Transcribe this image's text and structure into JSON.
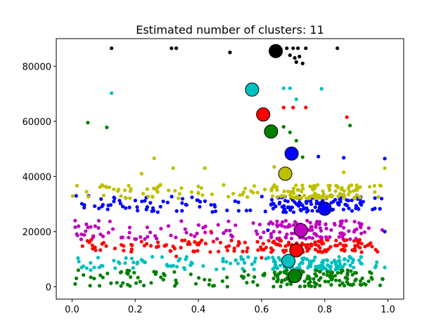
{
  "chart_data": {
    "type": "scatter",
    "title": "Estimated number of clusters: 11",
    "xlabel": "",
    "ylabel": "",
    "xlim": [
      -0.05,
      1.05
    ],
    "ylim": [
      -4500,
      90000
    ],
    "x_ticks": [
      0.0,
      0.2,
      0.4,
      0.6,
      0.8,
      1.0
    ],
    "x_tick_labels": [
      "0.0",
      "0.2",
      "0.4",
      "0.6",
      "0.8",
      "1.0"
    ],
    "y_ticks": [
      0,
      20000,
      40000,
      60000,
      80000
    ],
    "y_tick_labels": [
      "0",
      "20000",
      "40000",
      "60000",
      "80000"
    ],
    "grid": false,
    "legend": "none",
    "clusters": [
      {
        "color": "#000000",
        "centroid": [
          0.645,
          85500
        ],
        "members": [
          [
            0.125,
            86500
          ],
          [
            0.315,
            86500
          ],
          [
            0.33,
            86500
          ],
          [
            0.5,
            85000
          ],
          [
            0.68,
            86500
          ],
          [
            0.7,
            86500
          ],
          [
            0.715,
            86500
          ],
          [
            0.74,
            86500
          ],
          [
            0.84,
            86500
          ],
          [
            0.69,
            84000
          ],
          [
            0.705,
            83000
          ],
          [
            0.72,
            83500
          ],
          [
            0.71,
            81500
          ],
          [
            0.73,
            81000
          ]
        ]
      },
      {
        "color": "#00bfbf",
        "centroid": [
          0.57,
          71500
        ],
        "members": [
          [
            0.125,
            70200
          ],
          [
            0.67,
            72000
          ],
          [
            0.69,
            72000
          ],
          [
            0.71,
            68000
          ],
          [
            0.79,
            71800
          ]
        ]
      },
      {
        "color": "#ff0000",
        "centroid": [
          0.605,
          62500
        ],
        "members": [
          [
            0.67,
            65000
          ],
          [
            0.7,
            65000
          ],
          [
            0.74,
            65000
          ],
          [
            0.87,
            61500
          ]
        ]
      },
      {
        "color": "#008000",
        "centroid": [
          0.63,
          56300
        ],
        "members": [
          [
            0.05,
            59500
          ],
          [
            0.11,
            57800
          ],
          [
            0.88,
            58500
          ],
          [
            0.67,
            58000
          ],
          [
            0.69,
            56000
          ],
          [
            0.71,
            53000
          ],
          [
            0.7,
            49000
          ],
          [
            0.73,
            47000
          ]
        ]
      },
      {
        "color": "#0000ff",
        "centroid": [
          0.695,
          48300
        ],
        "members": [
          [
            0.78,
            47200
          ],
          [
            0.86,
            46800
          ],
          [
            0.99,
            46500
          ]
        ]
      },
      {
        "color": "#bfbf00",
        "centroid": [
          0.675,
          41000
        ],
        "members": [
          [
            0.22,
            41000
          ],
          [
            0.26,
            46600
          ],
          [
            0.32,
            43000
          ],
          [
            0.42,
            43000
          ],
          [
            0.86,
            41500
          ],
          [
            0.99,
            43000
          ],
          [
            0.64,
            43500
          ],
          [
            0.28,
            37000
          ]
        ]
      },
      {
        "color": "#0000ff",
        "centroid": [
          0.8,
          28300
        ],
        "members": [
          [
            0.62,
            20500
          ],
          [
            0.99,
            20000
          ]
        ]
      },
      {
        "color": "#bf00bf",
        "centroid": [
          0.725,
          20500
        ],
        "members": [
          [
            0.01,
            24000
          ],
          [
            0.03,
            19000
          ],
          [
            0.05,
            21500
          ],
          [
            0.09,
            19000
          ]
        ]
      },
      {
        "color": "#ff0000",
        "centroid": [
          0.71,
          13200
        ],
        "members": [
          [
            0.44,
            20000
          ],
          [
            0.47,
            16000
          ],
          [
            0.19,
            15000
          ],
          [
            0.33,
            11000
          ],
          [
            0.6,
            10500
          ],
          [
            0.63,
            14000
          ]
        ]
      },
      {
        "color": "#00bfbf",
        "centroid": [
          0.685,
          9300
        ],
        "members": [
          [
            0.03,
            7000
          ],
          [
            0.07,
            7000
          ],
          [
            0.15,
            8500
          ],
          [
            0.3,
            8000
          ],
          [
            0.48,
            6500
          ],
          [
            0.54,
            6500
          ],
          [
            0.96,
            7000
          ],
          [
            0.99,
            7000
          ]
        ]
      },
      {
        "color": "#008000",
        "centroid": [
          0.705,
          3900
        ],
        "members": [
          [
            0.01,
            1000
          ],
          [
            0.02,
            6000
          ],
          [
            0.07,
            3000
          ],
          [
            0.33,
            1200
          ],
          [
            0.45,
            400
          ],
          [
            0.95,
            2800
          ]
        ]
      }
    ],
    "bands": [
      {
        "color": "#0000ff",
        "x": [
          0.01,
          0.99
        ],
        "y": [
          27000,
          33000
        ]
      },
      {
        "color": "#bfbf00",
        "x": [
          0.0,
          0.99
        ],
        "y": [
          32000,
          37000
        ]
      },
      {
        "color": "#bf00bf",
        "x": [
          0.01,
          0.99
        ],
        "y": [
          17000,
          24000
        ]
      },
      {
        "color": "#ff0000",
        "x": [
          0.02,
          0.99
        ],
        "y": [
          12500,
          17000
        ]
      },
      {
        "color": "#00bfbf",
        "x": [
          0.01,
          0.99
        ],
        "y": [
          6000,
          11000
        ]
      },
      {
        "color": "#008000",
        "x": [
          0.01,
          0.99
        ],
        "y": [
          0,
          6000
        ]
      }
    ]
  }
}
